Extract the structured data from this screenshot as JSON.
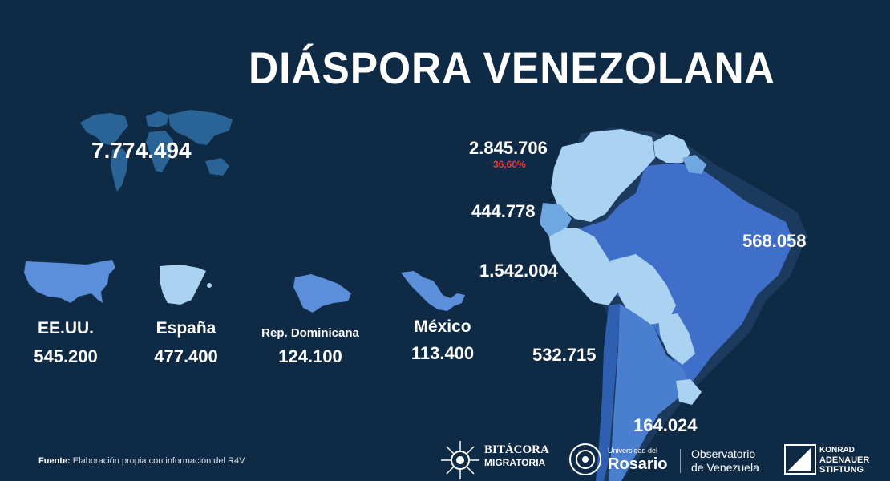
{
  "title": "DIÁSPORA VENEZOLANA",
  "world": {
    "total": "7.774.494"
  },
  "countries": [
    {
      "label": "EE.UU.",
      "value": "545.200",
      "shape": "usa-map"
    },
    {
      "label": "España",
      "value": "477.400",
      "shape": "spain-map"
    },
    {
      "label": "Rep. Dominicana",
      "value": "124.100",
      "shape": "dominican-republic-map"
    },
    {
      "label": "México",
      "value": "113.400",
      "shape": "mexico-map"
    }
  ],
  "south_america": {
    "colombia": {
      "value": "2.845.706",
      "percent": "36,60%"
    },
    "ecuador": {
      "value": "444.778"
    },
    "peru": {
      "value": "1.542.004"
    },
    "brazil": {
      "value": "568.058"
    },
    "chile": {
      "value": "532.715"
    },
    "argentina": {
      "value": "164.024"
    }
  },
  "colors": {
    "background": "#0f2a45",
    "light_blue": "#a9d3f0",
    "mid_blue": "#6fa8e0",
    "dark_blue": "#3f6fc9",
    "highlight": "#e83b3b"
  },
  "footer": {
    "source_label": "Fuente:",
    "source_text": "Elaboración propia con información del R4V",
    "logos": [
      {
        "line1": "BITÁCORA",
        "line2": "MIGRATORIA"
      },
      {
        "line1": "Universidad del",
        "line2": "Rosario"
      },
      {
        "line1": "Observatorio",
        "line2": "de Venezuela"
      },
      {
        "line1": "KONRAD",
        "line2": "ADENAUER",
        "line3": "STIFTUNG"
      }
    ]
  }
}
